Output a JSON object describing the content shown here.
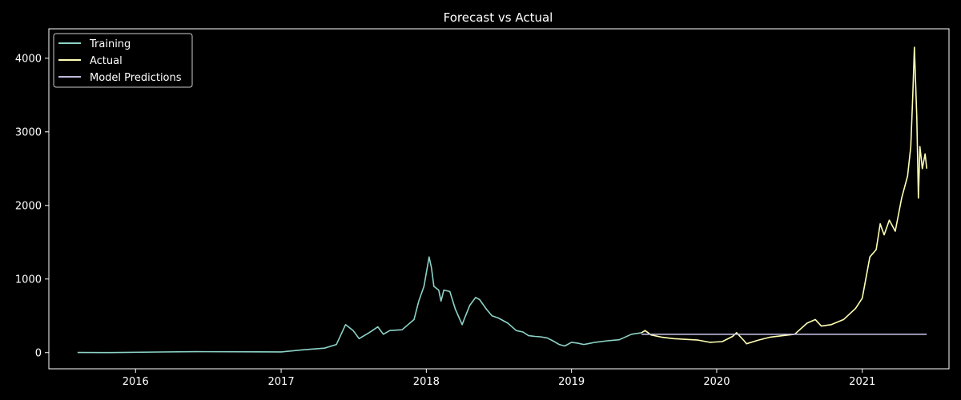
{
  "chart_data": {
    "type": "line",
    "title": "Forecast vs Actual",
    "xlabel": "",
    "ylabel": "",
    "x_type": "date",
    "xlim": [
      "2015-05-28",
      "2021-08-07"
    ],
    "ylim": [
      -220,
      4400
    ],
    "x_ticks": [
      "2016",
      "2017",
      "2018",
      "2019",
      "2020",
      "2021"
    ],
    "x_tick_dates": [
      "2016-01-01",
      "2017-01-01",
      "2018-01-01",
      "2019-01-01",
      "2020-01-01",
      "2021-01-01"
    ],
    "y_ticks": [
      0,
      1000,
      2000,
      3000,
      4000
    ],
    "grid": false,
    "legend_position": "top-left",
    "background": "#000000",
    "series": [
      {
        "name": "Training",
        "color": "#8dd3c7",
        "x": [
          "2015-08-08",
          "2015-11-01",
          "2016-03-01",
          "2016-06-01",
          "2016-09-01",
          "2017-01-01",
          "2017-03-01",
          "2017-04-20",
          "2017-05-20",
          "2017-06-12",
          "2017-07-01",
          "2017-07-16",
          "2017-08-10",
          "2017-09-01",
          "2017-09-15",
          "2017-10-01",
          "2017-11-01",
          "2017-12-01",
          "2017-12-13",
          "2017-12-26",
          "2018-01-08",
          "2018-01-14",
          "2018-01-20",
          "2018-02-01",
          "2018-02-07",
          "2018-02-14",
          "2018-03-01",
          "2018-03-15",
          "2018-04-01",
          "2018-04-06",
          "2018-04-20",
          "2018-05-05",
          "2018-05-15",
          "2018-06-01",
          "2018-06-15",
          "2018-07-01",
          "2018-07-25",
          "2018-08-15",
          "2018-09-01",
          "2018-09-15",
          "2018-10-01",
          "2018-10-15",
          "2018-11-01",
          "2018-11-15",
          "2018-12-01",
          "2018-12-15",
          "2019-01-01",
          "2019-01-15",
          "2019-02-01",
          "2019-02-15",
          "2019-03-01",
          "2019-04-01",
          "2019-05-01",
          "2019-06-01",
          "2019-06-26"
        ],
        "y": [
          2,
          1,
          8,
          13,
          12,
          9,
          40,
          60,
          110,
          380,
          300,
          190,
          270,
          350,
          250,
          300,
          310,
          450,
          700,
          900,
          1300,
          1150,
          900,
          850,
          700,
          850,
          830,
          590,
          380,
          450,
          640,
          750,
          720,
          590,
          500,
          470,
          400,
          300,
          280,
          230,
          220,
          215,
          200,
          160,
          110,
          90,
          140,
          130,
          110,
          125,
          140,
          160,
          175,
          250,
          270
        ]
      },
      {
        "name": "Actual",
        "color": "#ffffb3",
        "x": [
          "2019-06-26",
          "2019-07-05",
          "2019-07-20",
          "2019-08-15",
          "2019-09-15",
          "2019-10-15",
          "2019-11-15",
          "2019-12-15",
          "2020-01-15",
          "2020-02-10",
          "2020-02-20",
          "2020-03-10",
          "2020-03-16",
          "2020-04-15",
          "2020-05-15",
          "2020-06-15",
          "2020-07-15",
          "2020-08-15",
          "2020-09-05",
          "2020-09-20",
          "2020-10-15",
          "2020-11-15",
          "2020-12-15",
          "2021-01-01",
          "2021-01-20",
          "2021-02-05",
          "2021-02-15",
          "2021-02-25",
          "2021-03-10",
          "2021-03-25",
          "2021-04-10",
          "2021-04-25",
          "2021-05-03",
          "2021-05-08",
          "2021-05-12",
          "2021-05-18",
          "2021-05-22",
          "2021-05-26",
          "2021-06-01",
          "2021-06-08",
          "2021-06-12"
        ],
        "y": [
          270,
          300,
          240,
          210,
          190,
          180,
          170,
          140,
          150,
          220,
          270,
          160,
          120,
          170,
          210,
          230,
          250,
          400,
          450,
          360,
          380,
          450,
          600,
          740,
          1300,
          1400,
          1750,
          1600,
          1800,
          1650,
          2100,
          2400,
          2800,
          3500,
          4150,
          3200,
          2100,
          2800,
          2500,
          2700,
          2500
        ]
      },
      {
        "name": "Model Predictions",
        "color": "#bebada",
        "x": [
          "2019-06-26",
          "2021-06-12"
        ],
        "y": [
          250,
          250
        ]
      }
    ]
  }
}
